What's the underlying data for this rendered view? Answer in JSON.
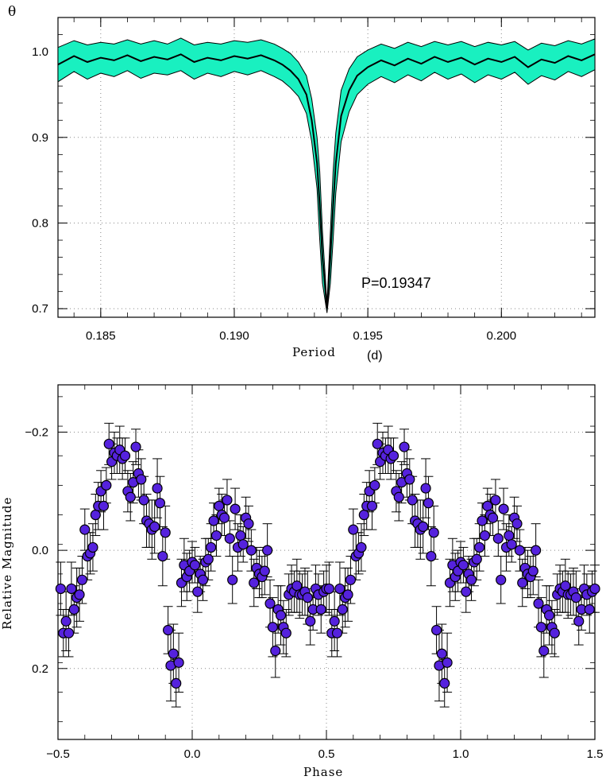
{
  "chart_data": [
    {
      "type": "line",
      "ylabel": "θ",
      "xlabel": "Period",
      "xunit": "(d)",
      "annotation": "P=0.19347",
      "xlim": [
        0.1834,
        0.2035
      ],
      "ylim": [
        0.69,
        1.04
      ],
      "xticks": [
        0.185,
        0.19,
        0.195,
        0.2
      ],
      "xtick_labels": [
        "0.185",
        "0.190",
        "0.195",
        "0.200"
      ],
      "yticks": [
        0.7,
        0.8,
        0.9,
        1.0
      ],
      "ytick_labels": [
        "0.7",
        "0.8",
        "0.9",
        "1.0"
      ],
      "grid": true,
      "band_color": "#19f0c0",
      "line_color": "#000000",
      "series": [
        {
          "x": [
            0.1834,
            0.184,
            0.1845,
            0.185,
            0.1855,
            0.186,
            0.1865,
            0.187,
            0.1875,
            0.188,
            0.1885,
            0.189,
            0.1895,
            0.19,
            0.1905,
            0.191,
            0.1915,
            0.1918,
            0.1921,
            0.1924,
            0.1927,
            0.1929,
            0.1931,
            0.1932,
            0.1933,
            0.19347,
            0.1936,
            0.1937,
            0.1938,
            0.194,
            0.1943,
            0.1946,
            0.195,
            0.1955,
            0.196,
            0.1965,
            0.197,
            0.1975,
            0.198,
            0.1985,
            0.199,
            0.1995,
            0.2,
            0.2005,
            0.201,
            0.2015,
            0.202,
            0.2025,
            0.203,
            0.2035
          ],
          "values": [
            0.985,
            0.995,
            0.988,
            0.993,
            0.99,
            0.996,
            0.989,
            0.994,
            0.991,
            0.997,
            0.988,
            0.993,
            0.99,
            0.995,
            0.992,
            0.996,
            0.99,
            0.985,
            0.978,
            0.968,
            0.95,
            0.92,
            0.87,
            0.82,
            0.76,
            0.7,
            0.76,
            0.82,
            0.87,
            0.925,
            0.955,
            0.972,
            0.982,
            0.99,
            0.984,
            0.992,
            0.986,
            0.994,
            0.988,
            0.993,
            0.985,
            0.992,
            0.988,
            0.994,
            0.982,
            0.991,
            0.987,
            0.995,
            0.99,
            0.997
          ],
          "band_halfwidth": [
            0.02,
            0.018,
            0.02,
            0.018,
            0.019,
            0.018,
            0.02,
            0.019,
            0.018,
            0.019,
            0.02,
            0.018,
            0.019,
            0.018,
            0.019,
            0.018,
            0.019,
            0.019,
            0.02,
            0.02,
            0.022,
            0.025,
            0.03,
            0.04,
            0.03,
            0.005,
            0.03,
            0.04,
            0.035,
            0.03,
            0.025,
            0.022,
            0.02,
            0.019,
            0.02,
            0.019,
            0.02,
            0.018,
            0.02,
            0.019,
            0.021,
            0.019,
            0.02,
            0.018,
            0.02,
            0.019,
            0.02,
            0.018,
            0.019,
            0.018
          ]
        }
      ]
    },
    {
      "type": "scatter",
      "xlabel": "Phase",
      "ylabel": "Relative Magnitude",
      "xlim": [
        -0.5,
        1.5
      ],
      "ylim": [
        0.32,
        -0.28
      ],
      "y_inverted": true,
      "xticks": [
        -0.5,
        0.0,
        0.5,
        1.0,
        1.5
      ],
      "xtick_labels": [
        "−0.5",
        "0.0",
        "0.5",
        "1.0",
        "1.5"
      ],
      "yticks": [
        -0.2,
        0.0,
        0.2
      ],
      "ytick_labels": [
        "−0.2",
        "0.0",
        "0.2"
      ],
      "grid": true,
      "marker_color": "#5522dd",
      "series": [
        {
          "phase": [
            -0.49,
            -0.48,
            -0.47,
            -0.46,
            -0.45,
            -0.44,
            -0.43,
            -0.42,
            -0.41,
            -0.4,
            -0.39,
            -0.38,
            -0.37,
            -0.36,
            -0.35,
            -0.34,
            -0.33,
            -0.32,
            -0.31,
            -0.3,
            -0.29,
            -0.28,
            -0.27,
            -0.26,
            -0.25,
            -0.24,
            -0.23,
            -0.22,
            -0.21,
            -0.2,
            -0.19,
            -0.18,
            -0.17,
            -0.16,
            -0.15,
            -0.14,
            -0.13,
            -0.12,
            -0.11,
            -0.1,
            -0.09,
            -0.08,
            -0.07,
            -0.06,
            -0.05,
            -0.04,
            -0.03,
            -0.02,
            -0.01,
            0.0,
            0.01,
            0.02,
            0.03,
            0.04,
            0.05,
            0.06,
            0.07,
            0.08,
            0.09,
            0.1,
            0.11,
            0.12,
            0.13,
            0.14,
            0.15,
            0.16,
            0.17,
            0.18,
            0.19,
            0.2,
            0.21,
            0.22,
            0.23,
            0.24,
            0.25,
            0.26,
            0.27,
            0.28,
            0.29,
            0.3,
            0.31,
            0.32,
            0.33,
            0.34,
            0.35,
            0.36,
            0.37,
            0.38,
            0.39,
            0.4,
            0.41,
            0.42,
            0.43,
            0.44,
            0.45,
            0.46,
            0.47,
            0.48,
            0.49,
            0.5
          ],
          "values": [
            0.065,
            0.14,
            0.12,
            0.14,
            0.065,
            0.1,
            0.08,
            0.075,
            0.05,
            -0.035,
            0.01,
            0.005,
            -0.005,
            -0.06,
            -0.075,
            -0.1,
            -0.075,
            -0.11,
            -0.18,
            -0.15,
            -0.165,
            -0.16,
            -0.17,
            -0.155,
            -0.16,
            -0.1,
            -0.09,
            -0.115,
            -0.175,
            -0.13,
            -0.12,
            -0.085,
            -0.05,
            -0.045,
            -0.035,
            -0.04,
            -0.105,
            -0.08,
            0.01,
            -0.03,
            0.135,
            0.195,
            0.175,
            0.225,
            0.19,
            0.055,
            0.025,
            0.045,
            0.035,
            0.02,
            0.025,
            0.07,
            0.04,
            0.05,
            0.02,
            0.015,
            -0.005,
            -0.05,
            -0.025,
            -0.075,
            -0.06,
            -0.055,
            -0.085,
            -0.02,
            0.05,
            -0.07,
            -0.005,
            -0.025,
            -0.01,
            -0.055,
            -0.045,
            0.0,
            0.055,
            0.03,
            0.04,
            0.045,
            0.035,
            0.0,
            0.09,
            0.13,
            0.17,
            0.1,
            0.11,
            0.13,
            0.14,
            0.075,
            0.065,
            0.07,
            0.06,
            0.075,
            0.075,
            0.07,
            0.08,
            0.12,
            0.1,
            0.065,
            0.075,
            0.1,
            0.07,
            0.065
          ],
          "errors": [
            0.045,
            0.04,
            0.05,
            0.04,
            0.045,
            0.04,
            0.05,
            0.045,
            0.04,
            0.035,
            0.04,
            0.035,
            0.04,
            0.035,
            0.04,
            0.035,
            0.04,
            0.03,
            0.035,
            0.03,
            0.035,
            0.03,
            0.04,
            0.035,
            0.03,
            0.035,
            0.04,
            0.035,
            0.03,
            0.04,
            0.035,
            0.04,
            0.045,
            0.04,
            0.05,
            0.045,
            0.05,
            0.045,
            0.05,
            0.045,
            0.04,
            0.06,
            0.05,
            0.04,
            0.05,
            0.04,
            0.045,
            0.04,
            0.035,
            0.035,
            0.03,
            0.035,
            0.03,
            0.035,
            0.04,
            0.035,
            0.04,
            0.03,
            0.035,
            0.03,
            0.035,
            0.03,
            0.035,
            0.03,
            0.04,
            0.035,
            0.04,
            0.035,
            0.03,
            0.035,
            0.03,
            0.035,
            0.04,
            0.035,
            0.04,
            0.035,
            0.04,
            0.045,
            0.04,
            0.05,
            0.045,
            0.04,
            0.05,
            0.045,
            0.04,
            0.035,
            0.04,
            0.035,
            0.045,
            0.04,
            0.035,
            0.04,
            0.045,
            0.04,
            0.035,
            0.04,
            0.035,
            0.04,
            0.035,
            0.04
          ]
        }
      ]
    }
  ]
}
